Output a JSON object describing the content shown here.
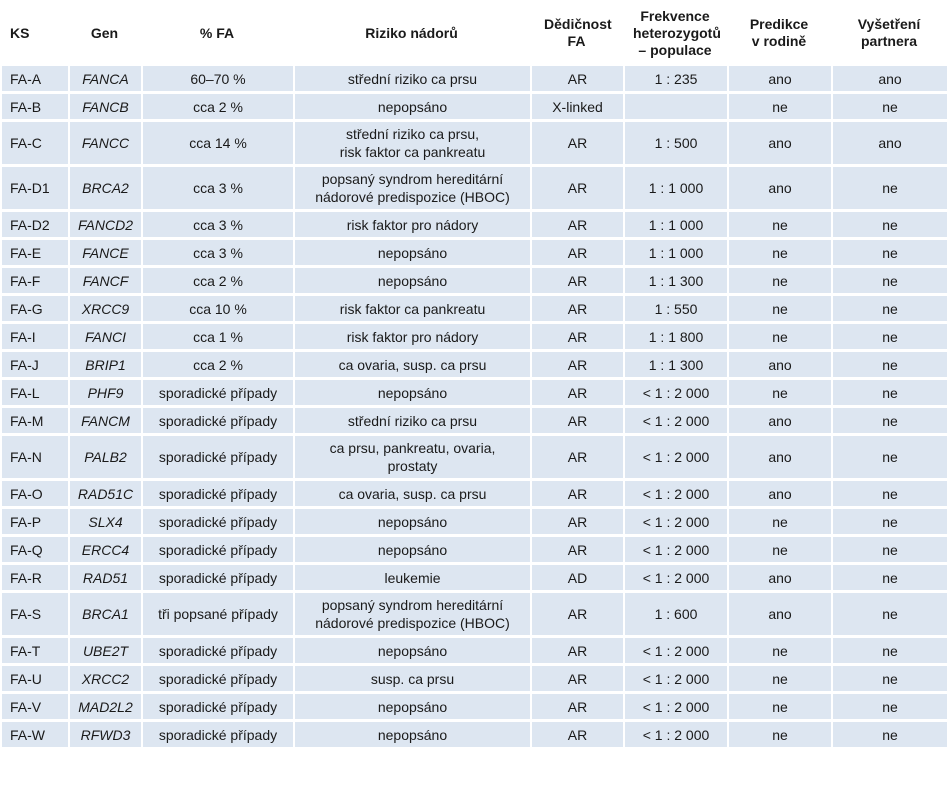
{
  "headers": [
    "KS",
    "Gen",
    "% FA",
    "Riziko nádorů",
    "Dědičnost FA",
    "Frekvence heterozygotů – populace",
    "Predikce v rodině",
    "Vyšetření partnera"
  ],
  "rows": [
    {
      "ks": "FA-A",
      "gen": "FANCA",
      "fa": "60–70 %",
      "riziko": "střední riziko ca prsu",
      "dedicnost": "AR",
      "frekvence": "1 : 235",
      "predikce": "ano",
      "partner": "ano"
    },
    {
      "ks": "FA-B",
      "gen": "FANCB",
      "fa": "cca 2 %",
      "riziko": "nepopsáno",
      "dedicnost": "X-linked",
      "frekvence": "",
      "predikce": "ne",
      "partner": "ne"
    },
    {
      "ks": "FA-C",
      "gen": "FANCC",
      "fa": "cca 14 %",
      "riziko": "střední riziko ca prsu,\nrisk faktor ca pankreatu",
      "dedicnost": "AR",
      "frekvence": "1 : 500",
      "predikce": "ano",
      "partner": "ano"
    },
    {
      "ks": "FA-D1",
      "gen": "BRCA2",
      "fa": "cca 3 %",
      "riziko": "popsaný syndrom hereditární\nnádorové predispozice (HBOC)",
      "dedicnost": "AR",
      "frekvence": "1 : 1 000",
      "predikce": "ano",
      "partner": "ne"
    },
    {
      "ks": "FA-D2",
      "gen": "FANCD2",
      "fa": "cca 3 %",
      "riziko": "risk faktor pro nádory",
      "dedicnost": "AR",
      "frekvence": "1 : 1 000",
      "predikce": "ne",
      "partner": "ne"
    },
    {
      "ks": "FA-E",
      "gen": "FANCE",
      "fa": "cca 3 %",
      "riziko": "nepopsáno",
      "dedicnost": "AR",
      "frekvence": "1 : 1 000",
      "predikce": "ne",
      "partner": "ne"
    },
    {
      "ks": "FA-F",
      "gen": "FANCF",
      "fa": "cca 2 %",
      "riziko": "nepopsáno",
      "dedicnost": "AR",
      "frekvence": "1 : 1 300",
      "predikce": "ne",
      "partner": "ne"
    },
    {
      "ks": "FA-G",
      "gen": "XRCC9",
      "fa": "cca 10 %",
      "riziko": "risk faktor ca pankreatu",
      "dedicnost": "AR",
      "frekvence": "1 : 550",
      "predikce": "ne",
      "partner": "ne"
    },
    {
      "ks": "FA-I",
      "gen": "FANCI",
      "fa": "cca 1 %",
      "riziko": "risk faktor pro nádory",
      "dedicnost": "AR",
      "frekvence": "1 : 1 800",
      "predikce": "ne",
      "partner": "ne"
    },
    {
      "ks": "FA-J",
      "gen": "BRIP1",
      "fa": "cca 2 %",
      "riziko": "ca ovaria, susp. ca prsu",
      "dedicnost": "AR",
      "frekvence": "1 : 1 300",
      "predikce": "ano",
      "partner": "ne"
    },
    {
      "ks": "FA-L",
      "gen": "PHF9",
      "fa": "sporadické případy",
      "riziko": "nepopsáno",
      "dedicnost": "AR",
      "frekvence": "< 1 : 2 000",
      "predikce": "ne",
      "partner": "ne"
    },
    {
      "ks": "FA-M",
      "gen": "FANCM",
      "fa": "sporadické případy",
      "riziko": "střední riziko ca prsu",
      "dedicnost": "AR",
      "frekvence": "< 1 : 2 000",
      "predikce": "ano",
      "partner": "ne"
    },
    {
      "ks": "FA-N",
      "gen": "PALB2",
      "fa": "sporadické případy",
      "riziko": "ca prsu, pankreatu, ovaria,\nprostaty",
      "dedicnost": "AR",
      "frekvence": "< 1 : 2 000",
      "predikce": "ano",
      "partner": "ne"
    },
    {
      "ks": "FA-O",
      "gen": "RAD51C",
      "fa": "sporadické případy",
      "riziko": "ca ovaria, susp. ca prsu",
      "dedicnost": "AR",
      "frekvence": "< 1 : 2 000",
      "predikce": "ano",
      "partner": "ne"
    },
    {
      "ks": "FA-P",
      "gen": "SLX4",
      "fa": "sporadické případy",
      "riziko": "nepopsáno",
      "dedicnost": "AR",
      "frekvence": "< 1 : 2 000",
      "predikce": "ne",
      "partner": "ne"
    },
    {
      "ks": "FA-Q",
      "gen": "ERCC4",
      "fa": "sporadické případy",
      "riziko": "nepopsáno",
      "dedicnost": "AR",
      "frekvence": "< 1 : 2 000",
      "predikce": "ne",
      "partner": "ne"
    },
    {
      "ks": "FA-R",
      "gen": "RAD51",
      "fa": "sporadické případy",
      "riziko": "leukemie",
      "dedicnost": "AD",
      "frekvence": "< 1 : 2 000",
      "predikce": "ano",
      "partner": "ne"
    },
    {
      "ks": "FA-S",
      "gen": "BRCA1",
      "fa": "tři popsané případy",
      "riziko": "popsaný syndrom hereditární\nnádorové predispozice (HBOC)",
      "dedicnost": "AR",
      "frekvence": "1 : 600",
      "predikce": "ano",
      "partner": "ne"
    },
    {
      "ks": "FA-T",
      "gen": "UBE2T",
      "fa": "sporadické případy",
      "riziko": "nepopsáno",
      "dedicnost": "AR",
      "frekvence": "< 1 : 2 000",
      "predikce": "ne",
      "partner": "ne"
    },
    {
      "ks": "FA-U",
      "gen": "XRCC2",
      "fa": "sporadické případy",
      "riziko": "susp. ca prsu",
      "dedicnost": "AR",
      "frekvence": "< 1 : 2 000",
      "predikce": "ne",
      "partner": "ne"
    },
    {
      "ks": "FA-V",
      "gen": "MAD2L2",
      "fa": "sporadické případy",
      "riziko": "nepopsáno",
      "dedicnost": "AR",
      "frekvence": "< 1 : 2 000",
      "predikce": "ne",
      "partner": "ne"
    },
    {
      "ks": "FA-W",
      "gen": "RFWD3",
      "fa": "sporadické případy",
      "riziko": "nepopsáno",
      "dedicnost": "AR",
      "frekvence": "< 1 : 2 000",
      "predikce": "ne",
      "partner": "ne"
    }
  ],
  "colors": {
    "row_fill": "#dde6f1",
    "text": "#1a1a1a"
  }
}
